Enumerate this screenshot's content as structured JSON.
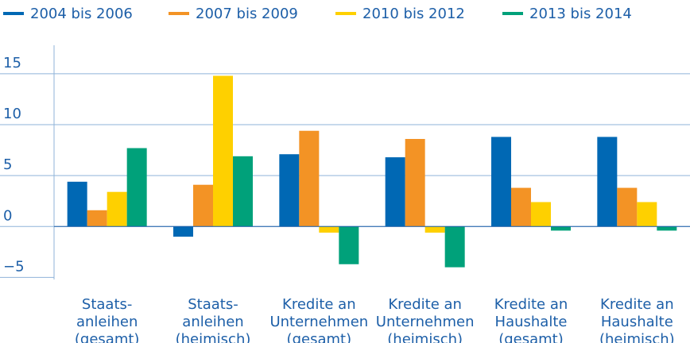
{
  "chart_data": {
    "type": "bar",
    "categories": [
      [
        "Staats-",
        "anleihen",
        "(gesamt)"
      ],
      [
        "Staats-",
        "anleihen",
        "(heimisch)"
      ],
      [
        "Kredite an",
        "Unternehmen",
        "(gesamt)"
      ],
      [
        "Kredite an",
        "Unternehmen",
        "(heimisch)"
      ],
      [
        "Kredite an",
        "Haushalte",
        "(gesamt)"
      ],
      [
        "Kredite an",
        "Haushalte",
        "(heimisch)"
      ]
    ],
    "series": [
      {
        "name": "2004 bis 2006",
        "color": "#0068b4",
        "values": [
          4.4,
          -1.0,
          7.1,
          6.8,
          8.8,
          8.8
        ]
      },
      {
        "name": "2007 bis 2009",
        "color": "#f39325",
        "values": [
          1.6,
          4.1,
          9.4,
          8.6,
          3.8,
          3.8
        ]
      },
      {
        "name": "2010 bis 2012",
        "color": "#fed000",
        "values": [
          3.4,
          14.8,
          -0.6,
          -0.6,
          2.4,
          2.4
        ]
      },
      {
        "name": "2013 bis 2014",
        "color": "#00a17a",
        "values": [
          7.7,
          6.9,
          -3.7,
          -4.0,
          -0.4,
          -0.4
        ]
      }
    ],
    "ylim": [
      -5.2,
      17.8
    ],
    "yticks": [
      {
        "value": -5,
        "label": "−5"
      },
      0,
      5,
      10,
      15
    ],
    "grid": true
  }
}
